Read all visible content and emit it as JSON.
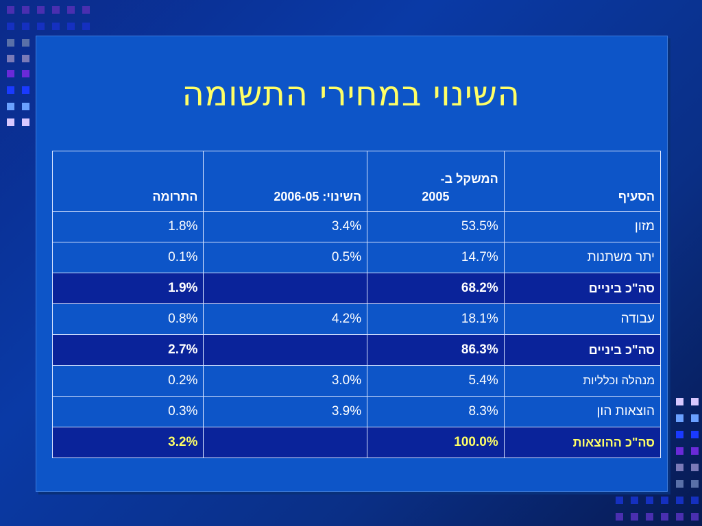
{
  "slide": {
    "title": "השינוי במחירי התשומה",
    "accent_title_color": "#ffff66",
    "background_color": "#0d55c8"
  },
  "table": {
    "headers": {
      "category": "הסעיף",
      "weight_line1": "המשקל ב-",
      "weight_line2": "2005",
      "change": "השינוי: 2006-05",
      "contribution": "התרומה"
    },
    "rows": [
      {
        "category": "מזון",
        "weight": "53.5%",
        "change": "3.4%",
        "contribution": "1.8%",
        "type": "row"
      },
      {
        "category": "יתר משתנות",
        "weight": "14.7%",
        "change": "0.5%",
        "contribution": "0.1%",
        "type": "row"
      },
      {
        "category": "סה\"כ ביניים",
        "weight": "68.2%",
        "change": "",
        "contribution": "1.9%",
        "type": "total"
      },
      {
        "category": "עבודה",
        "weight": "18.1%",
        "change": "4.2%",
        "contribution": "0.8%",
        "type": "row"
      },
      {
        "category": "סה\"כ ביניים",
        "weight": "86.3%",
        "change": "",
        "contribution": "2.7%",
        "type": "total"
      },
      {
        "category": "מנהלה וכלליות",
        "weight": "5.4%",
        "change": "3.0%",
        "contribution": "0.2%",
        "type": "row"
      },
      {
        "category": "הוצאות הון",
        "weight": "8.3%",
        "change": "3.9%",
        "contribution": "0.3%",
        "type": "row"
      },
      {
        "category": "סה\"כ ההוצאות",
        "weight": "100.0%",
        "change": "",
        "contribution": "3.2%",
        "type": "final"
      }
    ]
  }
}
